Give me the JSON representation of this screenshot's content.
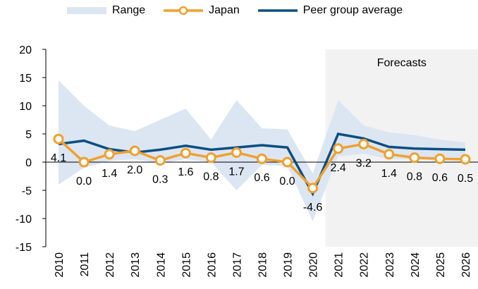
{
  "chart_data": {
    "type": "line",
    "categories": [
      "2010",
      "2011",
      "2012",
      "2013",
      "2014",
      "2015",
      "2016",
      "2017",
      "2018",
      "2019",
      "2020",
      "2021",
      "2022",
      "2023",
      "2024",
      "2025",
      "2026"
    ],
    "range": {
      "name": "Range",
      "color": "#dce6f2",
      "high": [
        14.5,
        10,
        6.5,
        5.5,
        7.5,
        9.5,
        4,
        11,
        6,
        5.8,
        -2,
        11,
        6.5,
        5.3,
        4.8,
        4,
        3.5
      ],
      "low": [
        -4,
        -1,
        0.2,
        0.5,
        -0.2,
        0.5,
        0,
        -5,
        -0.5,
        -0.7,
        -10.5,
        1,
        1.5,
        0.5,
        0.5,
        0.3,
        0.3
      ]
    },
    "series": [
      {
        "name": "Japan",
        "color": "#f0a030",
        "values": [
          4.1,
          0.0,
          1.4,
          2.0,
          0.3,
          1.6,
          0.8,
          1.7,
          0.6,
          0.0,
          -4.6,
          2.4,
          3.2,
          1.4,
          0.8,
          0.6,
          0.5
        ],
        "value_labels": [
          "4.1",
          "0.0",
          "1.4",
          "2.0",
          "0.3",
          "1.6",
          "0.8",
          "1.7",
          "0.6",
          "0.0",
          "-4.6",
          "2.4",
          "3.2",
          "1.4",
          "0.8",
          "0.6",
          "0.5"
        ]
      },
      {
        "name": "Peer group average",
        "color": "#0b4f82",
        "values": [
          3.2,
          3.8,
          2.3,
          1.7,
          2.2,
          2.9,
          2.2,
          2.6,
          3.0,
          2.6,
          -5.6,
          5.0,
          4.2,
          2.7,
          2.4,
          2.3,
          2.2
        ]
      }
    ],
    "forecast": {
      "text": "Forecasts",
      "from": "2021",
      "color": "#f2f2f2"
    },
    "ylim": [
      -15,
      20
    ],
    "yticks": [
      -15,
      -10,
      -5,
      0,
      5,
      10,
      15,
      20
    ]
  }
}
